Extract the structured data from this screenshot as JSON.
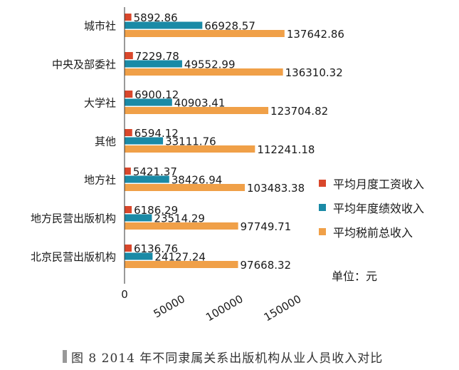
{
  "chart_data": {
    "type": "bar",
    "orientation": "horizontal",
    "categories": [
      "城市社",
      "中央及部委社",
      "大学社",
      "其他",
      "地方社",
      "地方民营出版机构",
      "北京民营出版机构"
    ],
    "series": [
      {
        "name": "平均月度工资收入",
        "color": "#d9472b",
        "values": [
          5892.86,
          7229.78,
          6900.12,
          6594.12,
          5421.37,
          6186.29,
          6136.76
        ]
      },
      {
        "name": "平均年度绩效收入",
        "color": "#1a8aa6",
        "values": [
          66928.57,
          49552.99,
          40903.41,
          33111.76,
          38426.94,
          23514.29,
          24127.24
        ]
      },
      {
        "name": "平均税前总收入",
        "color": "#f0a048",
        "values": [
          137642.86,
          136310.32,
          123704.82,
          112241.18,
          103483.38,
          97749.71,
          97668.32
        ]
      }
    ],
    "value_labels": [
      [
        "5892.86",
        "66928.57",
        "137642.86"
      ],
      [
        "7229.78",
        "49552.99",
        "136310.32"
      ],
      [
        "6900.12",
        "40903.41",
        "123704.82"
      ],
      [
        "6594.12",
        "33111.76",
        "112241.18"
      ],
      [
        "5421.37",
        "38426.94",
        "103483.38"
      ],
      [
        "6186.29",
        "23514.29",
        "97749.71"
      ],
      [
        "6136.76",
        "24127.24",
        "97668.32"
      ]
    ],
    "xlim": [
      0,
      150000
    ],
    "xticks": [
      0,
      50000,
      100000,
      150000
    ],
    "xtick_labels": [
      "0",
      "50000",
      "100000",
      "150000"
    ],
    "legend_position": "right",
    "grid": false
  },
  "legend": [
    {
      "label": "平均月度工资收入",
      "color": "#d9472b"
    },
    {
      "label": "平均年度绩效收入",
      "color": "#1a8aa6"
    },
    {
      "label": "平均税前总收入",
      "color": "#f0a048"
    }
  ],
  "unit_label": "单位：元",
  "caption": "图 8 2014 年不同隶属关系出版机构从业人员收入对比"
}
